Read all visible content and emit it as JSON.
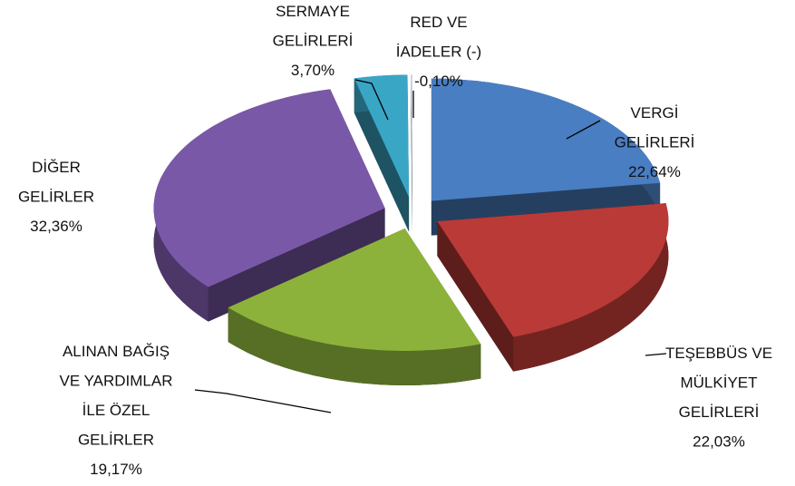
{
  "chart_data": {
    "type": "pie",
    "three_d": true,
    "exploded": true,
    "categories": [
      [
        "VERGİ",
        "GELİRLERİ"
      ],
      [
        "TEŞEBBÜS VE",
        "MÜLKİYET",
        "GELİRLERİ"
      ],
      [
        "ALINAN BAĞIŞ",
        "VE YARDIMLAR",
        "İLE ÖZEL",
        "GELİRLER"
      ],
      [
        "DİĞER",
        "GELİRLER"
      ],
      [
        "SERMAYE",
        "GELİRLERİ"
      ],
      [
        "RED VE",
        "İADELER (-)"
      ]
    ],
    "values": [
      22.64,
      22.03,
      19.17,
      32.36,
      3.7,
      -0.1
    ],
    "value_labels": [
      "22,64%",
      "22,03%",
      "19,17%",
      "32,36%",
      "3,70%",
      "-0,10%"
    ],
    "colors": [
      "#4a7ec2",
      "#b93a36",
      "#8cb23b",
      "#7a58a8",
      "#3aa6c6",
      "#d3dbe8"
    ]
  }
}
